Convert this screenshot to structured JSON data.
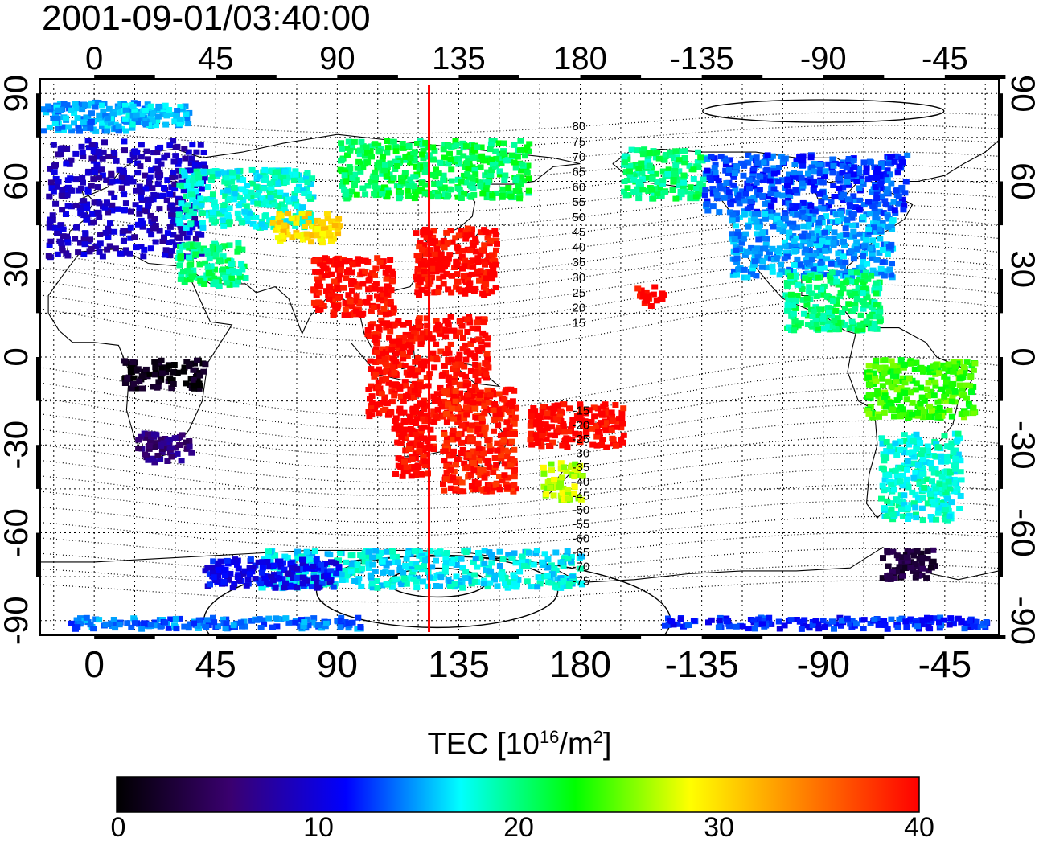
{
  "timestamp": "2001-09-01/03:40:00",
  "map": {
    "top_lon_labels": [
      "0",
      "45",
      "90",
      "135",
      "180",
      "-135",
      "-90",
      "-45"
    ],
    "bottom_lon_labels": [
      "0",
      "45",
      "90",
      "135",
      "180",
      "-135",
      "-90",
      "-45"
    ],
    "left_lat_labels": [
      "90",
      "60",
      "30",
      "0",
      "-30",
      "-60",
      "-90"
    ],
    "right_lat_labels": [
      "90",
      "60",
      "30",
      "0",
      "-30",
      "-60",
      "-90"
    ],
    "lon_ticks": [
      0,
      45,
      90,
      135,
      180,
      225,
      270,
      315
    ],
    "lat_ticks": [
      90,
      60,
      30,
      0,
      -30,
      -60,
      -90
    ],
    "lon_range": [
      -20,
      335
    ],
    "lat_range": [
      -95,
      95
    ],
    "marker_meridian_lon": 124,
    "marker_color": "#ff0000",
    "magnetic_latitude_labels": [
      "80",
      "75",
      "70",
      "65",
      "60",
      "55",
      "50",
      "45",
      "40",
      "35",
      "30",
      "25",
      "20",
      "15",
      "-15",
      "-20",
      "-25",
      "-30",
      "-35",
      "-40",
      "-45",
      "-50",
      "-55",
      "-60",
      "-65",
      "-70",
      "-75"
    ],
    "magnetic_latitude_label_lon": 180
  },
  "colorbar": {
    "label_prefix": "TEC  [10",
    "label_exp1": "16",
    "label_mid": "/m",
    "label_exp2": "2",
    "label_suffix": "]",
    "min": 0,
    "max": 40,
    "ticks": [
      "0",
      "10",
      "20",
      "30",
      "40"
    ],
    "colors": [
      "#000000",
      "#3a0070",
      "#0000ff",
      "#00ffff",
      "#00ff00",
      "#ffff00",
      "#ff8000",
      "#ff0000"
    ]
  },
  "tec_regions": [
    {
      "name": "europe",
      "lon": [
        -18,
        40
      ],
      "lat": [
        35,
        75
      ],
      "tec": 9
    },
    {
      "name": "north-atlantic",
      "lon": [
        -20,
        20
      ],
      "lat": [
        78,
        88
      ],
      "tec": 15
    },
    {
      "name": "greenland-north",
      "lon": [
        0,
        35
      ],
      "lat": [
        80,
        87
      ],
      "tec": 16
    },
    {
      "name": "east-europe-russia",
      "lon": [
        30,
        80
      ],
      "lat": [
        45,
        65
      ],
      "tec": 18
    },
    {
      "name": "middle-east",
      "lon": [
        30,
        55
      ],
      "lat": [
        25,
        40
      ],
      "tec": 20
    },
    {
      "name": "central-asia",
      "lon": [
        65,
        90
      ],
      "lat": [
        40,
        50
      ],
      "tec": 30
    },
    {
      "name": "siberia",
      "lon": [
        90,
        160
      ],
      "lat": [
        55,
        75
      ],
      "tec": 21
    },
    {
      "name": "japan-china",
      "lon": [
        118,
        148
      ],
      "lat": [
        22,
        45
      ],
      "tec": 40
    },
    {
      "name": "south-asia",
      "lon": [
        80,
        110
      ],
      "lat": [
        15,
        35
      ],
      "tec": 40
    },
    {
      "name": "southeast-asia",
      "lon": [
        100,
        145
      ],
      "lat": [
        -20,
        15
      ],
      "tec": 40
    },
    {
      "name": "australia-west",
      "lon": [
        110,
        125
      ],
      "lat": [
        -40,
        -20
      ],
      "tec": 40
    },
    {
      "name": "australia-east",
      "lon": [
        128,
        155
      ],
      "lat": [
        -45,
        -10
      ],
      "tec": 39
    },
    {
      "name": "pacific-islands",
      "lon": [
        160,
        195
      ],
      "lat": [
        -30,
        -15
      ],
      "tec": 40
    },
    {
      "name": "new-zealand",
      "lon": [
        165,
        180
      ],
      "lat": [
        -48,
        -35
      ],
      "tec": 27
    },
    {
      "name": "hawaii",
      "lon": [
        200,
        210
      ],
      "lat": [
        18,
        25
      ],
      "tec": 40
    },
    {
      "name": "africa-central",
      "lon": [
        10,
        40
      ],
      "lat": [
        -10,
        0
      ],
      "tec": 1
    },
    {
      "name": "africa-south",
      "lon": [
        15,
        35
      ],
      "lat": [
        -35,
        -25
      ],
      "tec": 6
    },
    {
      "name": "alaska",
      "lon": [
        195,
        225
      ],
      "lat": [
        55,
        72
      ],
      "tec": 20
    },
    {
      "name": "canada",
      "lon": [
        225,
        300
      ],
      "lat": [
        50,
        70
      ],
      "tec": 13
    },
    {
      "name": "usa",
      "lon": [
        235,
        295
      ],
      "lat": [
        28,
        50
      ],
      "tec": 15
    },
    {
      "name": "central-america",
      "lon": [
        255,
        290
      ],
      "lat": [
        10,
        30
      ],
      "tec": 20
    },
    {
      "name": "south-america-north",
      "lon": [
        285,
        325
      ],
      "lat": [
        -20,
        0
      ],
      "tec": 24
    },
    {
      "name": "south-america-south",
      "lon": [
        290,
        320
      ],
      "lat": [
        -55,
        -25
      ],
      "tec": 18
    },
    {
      "name": "tierra-del-fuego",
      "lon": [
        290,
        310
      ],
      "lat": [
        -75,
        -65
      ],
      "tec": 3
    },
    {
      "name": "antarctica-ring",
      "lon": [
        60,
        180
      ],
      "lat": [
        -78,
        -65
      ],
      "tec": 17
    },
    {
      "name": "southern-ocean-west",
      "lon": [
        40,
        90
      ],
      "lat": [
        -78,
        -68
      ],
      "tec": 11
    },
    {
      "name": "antarctic-coast",
      "lon": [
        -10,
        100
      ],
      "lat": [
        -92,
        -88
      ],
      "tec": 14
    },
    {
      "name": "antarctic-coast-east",
      "lon": [
        210,
        330
      ],
      "lat": [
        -92,
        -88
      ],
      "tec": 12
    }
  ]
}
